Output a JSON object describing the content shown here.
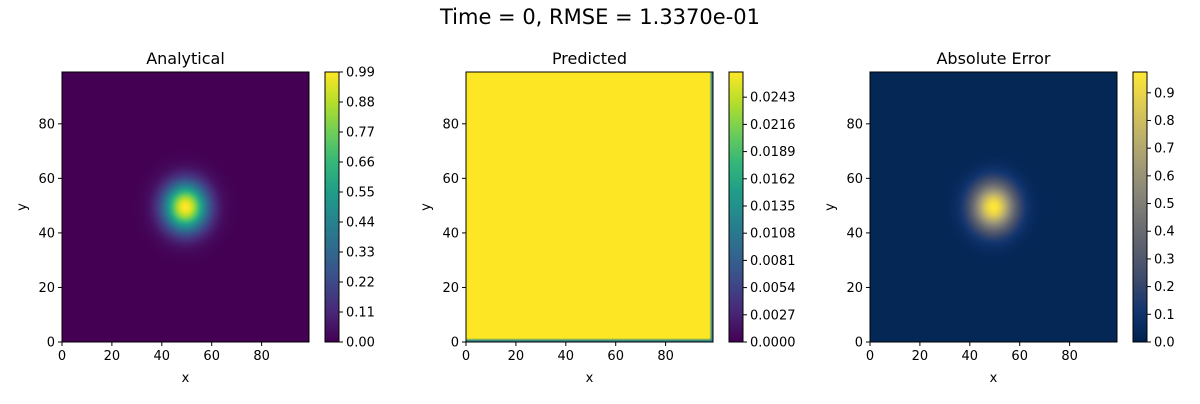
{
  "figure": {
    "title": "Time = 0, RMSE = 1.3370e-01"
  },
  "chart_data": [
    {
      "type": "heatmap",
      "title": "Analytical",
      "xlabel": "x",
      "ylabel": "y",
      "xlim": [
        0,
        99
      ],
      "ylim": [
        0,
        99
      ],
      "xticks": [
        "0",
        "20",
        "40",
        "60",
        "80"
      ],
      "yticks": [
        "0",
        "20",
        "40",
        "60",
        "80"
      ],
      "colormap": "viridis",
      "field": {
        "kind": "gaussian",
        "center": [
          49.5,
          49.5
        ],
        "sigma": 6,
        "peak": 1.0,
        "edge": 0.0
      },
      "colorbar": {
        "min": 0.0,
        "max": 0.99,
        "ticks": [
          "0.00",
          "0.11",
          "0.22",
          "0.33",
          "0.44",
          "0.55",
          "0.66",
          "0.77",
          "0.88",
          "0.99"
        ],
        "tick_values": [
          0,
          0.11,
          0.22,
          0.33,
          0.44,
          0.55,
          0.66,
          0.77,
          0.88,
          0.99
        ]
      }
    },
    {
      "type": "heatmap",
      "title": "Predicted",
      "xlabel": "x",
      "ylabel": "y",
      "xlim": [
        0,
        99
      ],
      "ylim": [
        0,
        99
      ],
      "xticks": [
        "0",
        "20",
        "40",
        "60",
        "80"
      ],
      "yticks": [
        "0",
        "20",
        "40",
        "60",
        "80"
      ],
      "colormap": "viridis",
      "field": {
        "kind": "uniform",
        "value": 0.0268,
        "boundary_value": 0.012
      },
      "colorbar": {
        "min": 0.0,
        "max": 0.0268,
        "ticks": [
          "0.0000",
          "0.0027",
          "0.0054",
          "0.0081",
          "0.0108",
          "0.0135",
          "0.0162",
          "0.0189",
          "0.0216",
          "0.0243"
        ],
        "tick_values": [
          0,
          0.0027,
          0.0054,
          0.0081,
          0.0108,
          0.0135,
          0.0162,
          0.0189,
          0.0216,
          0.0243
        ]
      }
    },
    {
      "type": "heatmap",
      "title": "Absolute Error",
      "xlabel": "x",
      "ylabel": "y",
      "xlim": [
        0,
        99
      ],
      "ylim": [
        0,
        99
      ],
      "xticks": [
        "0",
        "20",
        "40",
        "60",
        "80"
      ],
      "yticks": [
        "0",
        "20",
        "40",
        "60",
        "80"
      ],
      "colormap": "cividis",
      "field": {
        "kind": "gaussian",
        "center": [
          49.5,
          49.5
        ],
        "sigma": 6,
        "peak": 0.975,
        "edge": 0.026
      },
      "colorbar": {
        "min": 0.0,
        "max": 0.975,
        "ticks": [
          "0.0",
          "0.1",
          "0.2",
          "0.3",
          "0.4",
          "0.5",
          "0.6",
          "0.7",
          "0.8",
          "0.9"
        ],
        "tick_values": [
          0,
          0.1,
          0.2,
          0.3,
          0.4,
          0.5,
          0.6,
          0.7,
          0.8,
          0.9
        ]
      }
    }
  ]
}
